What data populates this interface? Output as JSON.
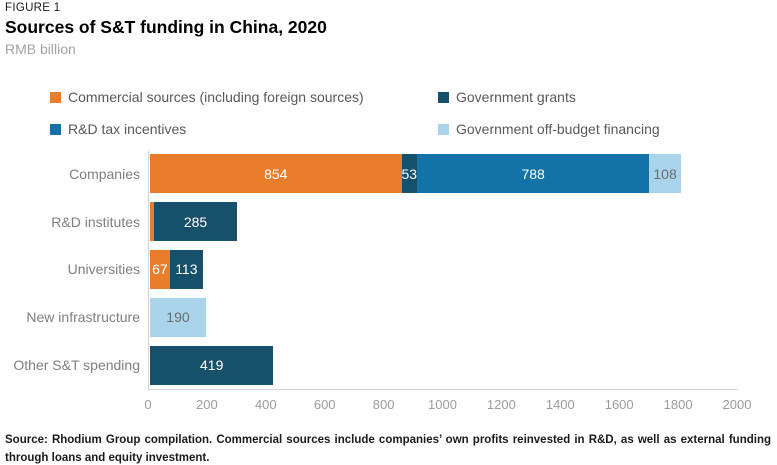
{
  "header": {
    "figure_label": "FIGURE 1",
    "title": "Sources of S&T funding in China, 2020",
    "unit": "RMB billion"
  },
  "source_note": "Source: Rhodium Group compilation. Commercial sources include companies’ own profits reinvested in R&D, as well as external funding through loans and equity investment.",
  "colors": {
    "commercial_orange": "#E87E2B",
    "government_grants_navy": "#17506B",
    "rd_tax_incentives_blue": "#1373A9",
    "off_budget_light_blue": "#A9D4EB",
    "axis_line": "#D5D5D5"
  },
  "chart_data": {
    "type": "bar",
    "orientation": "horizontal-stacked",
    "title": "Sources of S&T funding in China, 2020",
    "xlabel": "",
    "ylabel": "",
    "unit": "RMB billion",
    "xlim": [
      0,
      2000
    ],
    "x_ticks": [
      0,
      200,
      400,
      600,
      800,
      1000,
      1200,
      1400,
      1600,
      1800,
      2000
    ],
    "grid": false,
    "legend_position": "top",
    "legend": [
      {
        "name": "Commercial sources (including foreign sources)",
        "color": "#E87E2B"
      },
      {
        "name": "Government grants",
        "color": "#17506B"
      },
      {
        "name": "R&D tax incentives",
        "color": "#1373A9"
      },
      {
        "name": "Government off-budget financing",
        "color": "#A9D4EB"
      }
    ],
    "rows": [
      {
        "category": "Companies",
        "segments": [
          {
            "series": 0,
            "value": 854,
            "label": "854"
          },
          {
            "series": 1,
            "value": 53,
            "label": "53"
          },
          {
            "series": 2,
            "value": 788,
            "label": "788"
          },
          {
            "series": 3,
            "value": 108,
            "label": "108"
          }
        ]
      },
      {
        "category": "R&D institutes",
        "segments": [
          {
            "series": 0,
            "value": 12,
            "label": ""
          },
          {
            "series": 1,
            "value": 285,
            "label": "285"
          }
        ]
      },
      {
        "category": "Universities",
        "segments": [
          {
            "series": 0,
            "value": 67,
            "label": "67"
          },
          {
            "series": 1,
            "value": 113,
            "label": "113"
          }
        ]
      },
      {
        "category": "New infrastructure",
        "segments": [
          {
            "series": 3,
            "value": 190,
            "label": "190"
          }
        ]
      },
      {
        "category": "Other S&T spending",
        "segments": [
          {
            "series": 1,
            "value": 419,
            "label": "419"
          }
        ]
      }
    ]
  }
}
